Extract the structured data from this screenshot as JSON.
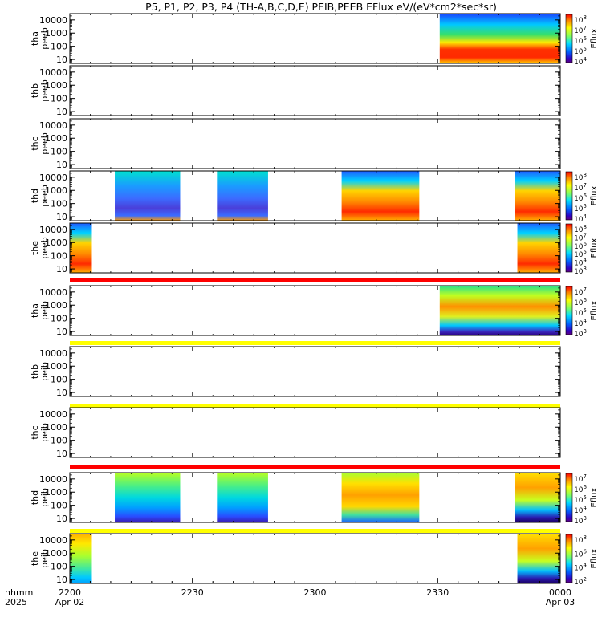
{
  "title": "P5, P1, P2, P3, P4 (TH-A,B,C,D,E) PEIB,PEEB EFlux eV/(eV*cm2*sec*sr)",
  "colors": {
    "red_bar": "#ff0000",
    "yellow_bar": "#ffff00",
    "axis": "#000000"
  },
  "chart_data": {
    "type": "heatmap",
    "x_axis": {
      "unit_label": "hhmm",
      "year_label": "2025",
      "ticks": [
        {
          "time": "2200",
          "date": "Apr 02",
          "minutes": 0
        },
        {
          "time": "2230",
          "date": "",
          "minutes": 30
        },
        {
          "time": "2300",
          "date": "",
          "minutes": 60
        },
        {
          "time": "2330",
          "date": "",
          "minutes": 90
        },
        {
          "time": "0000",
          "date": "Apr 03",
          "minutes": 120
        }
      ],
      "range_minutes": [
        0,
        120
      ]
    },
    "y_tick_labels": [
      "10000",
      "1000",
      "100",
      "10"
    ],
    "y_scale": "log",
    "y_range_eV": [
      5,
      30000
    ],
    "panels": [
      {
        "label1": "tha",
        "label2": "peeb",
        "colorbar": {
          "label": "Eflux",
          "ticks": [
            "10^8",
            "10^7",
            "10^6",
            "10^5",
            "10^4"
          ],
          "range_log": [
            3.4,
            8.2
          ]
        },
        "segments": [
          {
            "start_min": 90.5,
            "end_min": 120,
            "kind": "electron_a"
          }
        ],
        "status_bar": "none"
      },
      {
        "label1": "thb",
        "label2": "peeb",
        "colorbar": null,
        "segments": [],
        "status_bar": "none"
      },
      {
        "label1": "thc",
        "label2": "peeb",
        "colorbar": null,
        "segments": [],
        "status_bar": "none"
      },
      {
        "label1": "thd",
        "label2": "peeb",
        "colorbar": {
          "label": "Eflux",
          "ticks": [
            "10^8",
            "10^7",
            "10^6",
            "10^5",
            "10^4"
          ],
          "range_log": [
            3.4,
            8.2
          ]
        },
        "segments": [
          {
            "start_min": 11.0,
            "end_min": 27.0,
            "kind": "electron_blue"
          },
          {
            "start_min": 36.0,
            "end_min": 48.5,
            "kind": "electron_blue"
          },
          {
            "start_min": 66.5,
            "end_min": 85.5,
            "kind": "electron_warm"
          },
          {
            "start_min": 109.0,
            "end_min": 120,
            "kind": "electron_warm"
          }
        ],
        "status_bar": "none"
      },
      {
        "label1": "the",
        "label2": "peeb",
        "colorbar": {
          "label": "Eflux",
          "ticks": [
            "10^8",
            "10^7",
            "10^6",
            "10^5",
            "10^4",
            "10^3"
          ],
          "range_log": [
            2.4,
            8.2
          ]
        },
        "segments": [
          {
            "start_min": 0,
            "end_min": 5.2,
            "kind": "electron_warm"
          },
          {
            "start_min": 109.5,
            "end_min": 120,
            "kind": "electron_warm"
          }
        ],
        "status_bar": "red"
      },
      {
        "label1": "tha",
        "label2": "peib",
        "colorbar": {
          "label": "Eflux",
          "ticks": [
            "10^7",
            "10^6",
            "10^5",
            "10^4",
            "10^3"
          ],
          "range_log": [
            2.6,
            7.6
          ]
        },
        "segments": [
          {
            "start_min": 90.5,
            "end_min": 120,
            "kind": "ion_a"
          }
        ],
        "status_bar": "yellow"
      },
      {
        "label1": "thb",
        "label2": "peib",
        "colorbar": null,
        "segments": [],
        "status_bar": "yellow"
      },
      {
        "label1": "thc",
        "label2": "peib",
        "colorbar": null,
        "segments": [],
        "status_bar": "red"
      },
      {
        "label1": "thd",
        "label2": "peib",
        "colorbar": {
          "label": "Eflux",
          "ticks": [
            "10^7",
            "10^6",
            "10^5",
            "10^4",
            "10^3"
          ],
          "range_log": [
            2.6,
            7.6
          ]
        },
        "segments": [
          {
            "start_min": 11.0,
            "end_min": 27.0,
            "kind": "ion_cool"
          },
          {
            "start_min": 36.0,
            "end_min": 48.5,
            "kind": "ion_cool"
          },
          {
            "start_min": 66.5,
            "end_min": 85.5,
            "kind": "ion_warm"
          },
          {
            "start_min": 109.0,
            "end_min": 120,
            "kind": "ion_mixed"
          }
        ],
        "status_bar": "yellow"
      },
      {
        "label1": "the",
        "label2": "peib",
        "colorbar": {
          "label": "Eflux",
          "ticks": [
            "10^8",
            "10^6",
            "10^4",
            "10^2"
          ],
          "range_log": [
            1.4,
            8.6
          ]
        },
        "segments": [
          {
            "start_min": 0,
            "end_min": 5.2,
            "kind": "ion_green"
          },
          {
            "start_min": 109.5,
            "end_min": 120,
            "kind": "ion_mixed"
          }
        ],
        "status_bar": "none"
      }
    ]
  }
}
